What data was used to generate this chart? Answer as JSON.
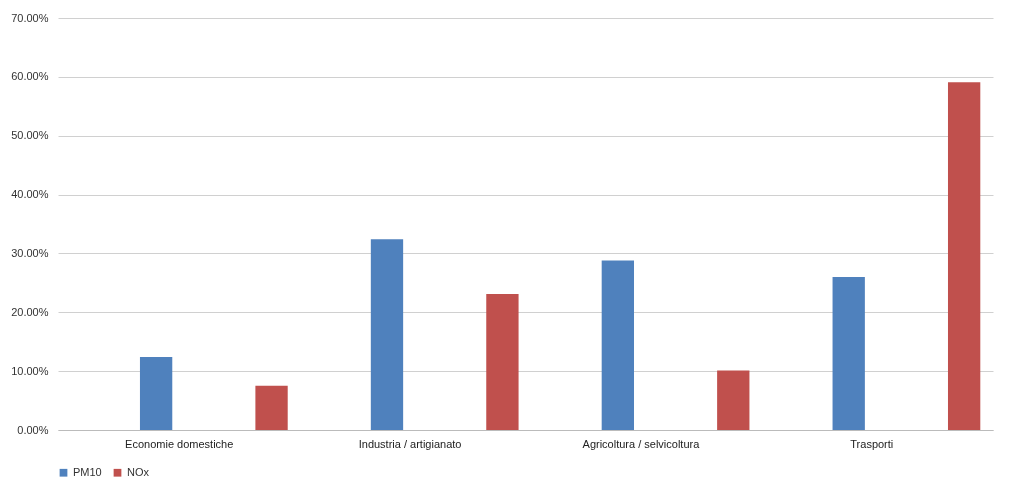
{
  "chart_data": {
    "type": "bar",
    "categories": [
      "Economie domestiche",
      "Industria / artigianato",
      "Agricoltura / selvicoltura",
      "Trasporti"
    ],
    "series": [
      {
        "name": "PM10",
        "color": "#4f81bd",
        "values": [
          12.4,
          32.4,
          28.8,
          26.0
        ]
      },
      {
        "name": "NOx",
        "color": "#c0504d",
        "values": [
          7.5,
          23.1,
          10.1,
          59.1
        ]
      }
    ],
    "ylim": [
      0,
      70
    ],
    "yticks": [
      {
        "value": 0,
        "label": "0.00%"
      },
      {
        "value": 10,
        "label": "10.00%"
      },
      {
        "value": 20,
        "label": "20.00%"
      },
      {
        "value": 30,
        "label": "30.00%"
      },
      {
        "value": 40,
        "label": "40.00%"
      },
      {
        "value": 50,
        "label": "50.00%"
      },
      {
        "value": 60,
        "label": "60.00%"
      },
      {
        "value": 70,
        "label": "70.00%"
      }
    ],
    "grid": true,
    "legend": "bottom"
  }
}
